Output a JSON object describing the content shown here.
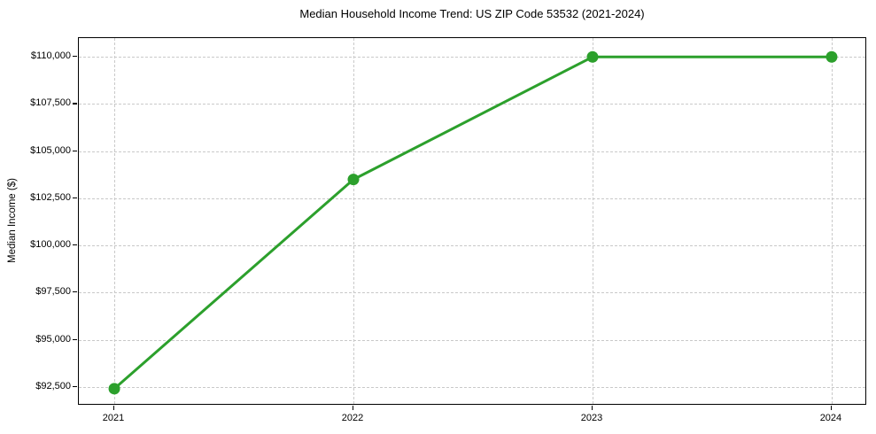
{
  "chart": {
    "title": "Median Household Income Trend: US ZIP Code 53532 (2021-2024)",
    "y_axis_title": "Median Income ($)"
  },
  "chart_data": {
    "type": "line",
    "title": "Median Household Income Trend: US ZIP Code 53532 (2021-2024)",
    "xlabel": "",
    "ylabel": "Median Income ($)",
    "x": [
      2021,
      2022,
      2023,
      2024
    ],
    "series": [
      {
        "name": "Median Household Income",
        "values": [
          92400,
          103500,
          110000,
          110000
        ]
      }
    ],
    "xtick_labels": [
      "2021",
      "2022",
      "2023",
      "2024"
    ],
    "yticks": [
      92500,
      95000,
      97500,
      100000,
      102500,
      105000,
      107500,
      110000
    ],
    "ytick_labels": [
      "$92,500",
      "$95,000",
      "$97,500",
      "$100,000",
      "$102,500",
      "$105,000",
      "$107,500",
      "$110,000"
    ],
    "ylim": [
      91500,
      111000
    ],
    "grid": true,
    "grid_style": "dashed",
    "legend_position": "none",
    "colors": {
      "line": "#2ca02c",
      "marker": "#2ca02c",
      "grid": "#c9c9c9",
      "axis_border": "#000000",
      "background": "#ffffff",
      "text": "#000000"
    }
  }
}
